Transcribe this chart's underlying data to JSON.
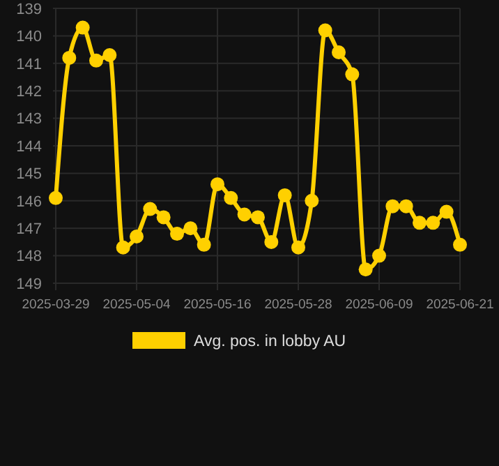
{
  "chart_data": {
    "type": "line",
    "categories": [
      "2025-03-29",
      null,
      null,
      null,
      null,
      null,
      "2025-05-04",
      null,
      null,
      null,
      null,
      null,
      "2025-05-16",
      null,
      null,
      null,
      null,
      null,
      "2025-05-28",
      null,
      null,
      null,
      null,
      null,
      "2025-06-09",
      null,
      null,
      null,
      null,
      null,
      "2025-06-21"
    ],
    "series": [
      {
        "name": "Avg. pos. in lobby AU",
        "color": "#ffd000",
        "values": [
          145.9,
          140.8,
          139.7,
          140.9,
          140.7,
          147.7,
          147.3,
          146.3,
          146.6,
          147.2,
          147.0,
          147.6,
          145.4,
          145.9,
          146.5,
          146.6,
          147.5,
          145.8,
          147.7,
          146.0,
          139.8,
          140.6,
          141.4,
          148.5,
          148.0,
          146.2,
          146.2,
          146.8,
          146.8,
          146.4,
          147.6
        ]
      }
    ],
    "ylim": [
      149,
      139
    ],
    "yticks": [
      139,
      140,
      141,
      142,
      143,
      144,
      145,
      146,
      147,
      148,
      149
    ],
    "grid": true,
    "legend": "bottom",
    "marker": "circle",
    "line_style": "solid"
  }
}
